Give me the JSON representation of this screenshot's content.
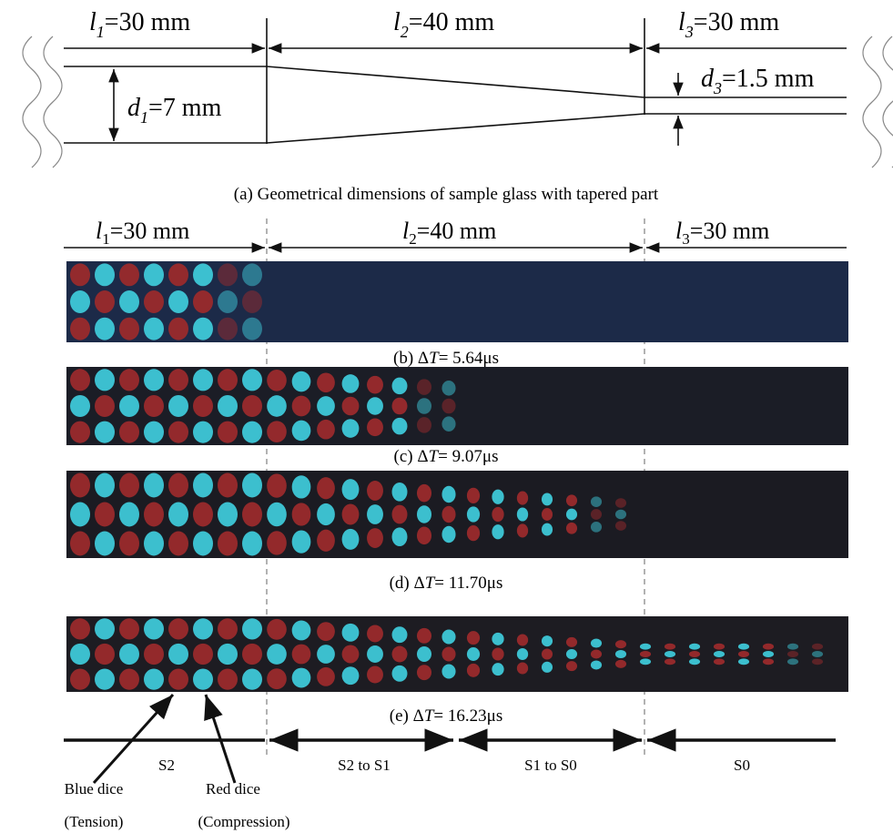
{
  "top_diagram": {
    "dims": [
      {
        "var": "l",
        "sub": "1",
        "rest": "=30 mm"
      },
      {
        "var": "l",
        "sub": "2",
        "rest": "=40 mm"
      },
      {
        "var": "l",
        "sub": "3",
        "rest": "=30 mm"
      }
    ],
    "d1": {
      "var": "d",
      "sub": "1",
      "rest": "=7 mm"
    },
    "d3": {
      "var": "d",
      "sub": "3",
      "rest": "=1.5 mm"
    },
    "caption": "(a) Geometrical dimensions of sample glass with tapered part"
  },
  "photo_dims": [
    {
      "var": "l",
      "sub": "1",
      "rest": "=30 mm"
    },
    {
      "var": "l",
      "sub": "2",
      "rest": "=40 mm"
    },
    {
      "var": "l",
      "sub": "3",
      "rest": "=30 mm"
    }
  ],
  "panels": [
    {
      "prefix": "(b) Δ",
      "var": "T",
      "rest": "= 5.64μs"
    },
    {
      "prefix": "(c) Δ",
      "var": "T",
      "rest": "= 9.07μs"
    },
    {
      "prefix": "(d) Δ",
      "var": "T",
      "rest": "= 11.70μs"
    },
    {
      "prefix": "(e) Δ",
      "var": "T",
      "rest": "= 16.23μs"
    }
  ],
  "regions": [
    "S2",
    "S2 to S1",
    "S1 to S0",
    "S0"
  ],
  "annotations": [
    {
      "label": "Blue dice",
      "note": "(Tension)"
    },
    {
      "label": "Red dice",
      "note": "(Compression)"
    }
  ]
}
